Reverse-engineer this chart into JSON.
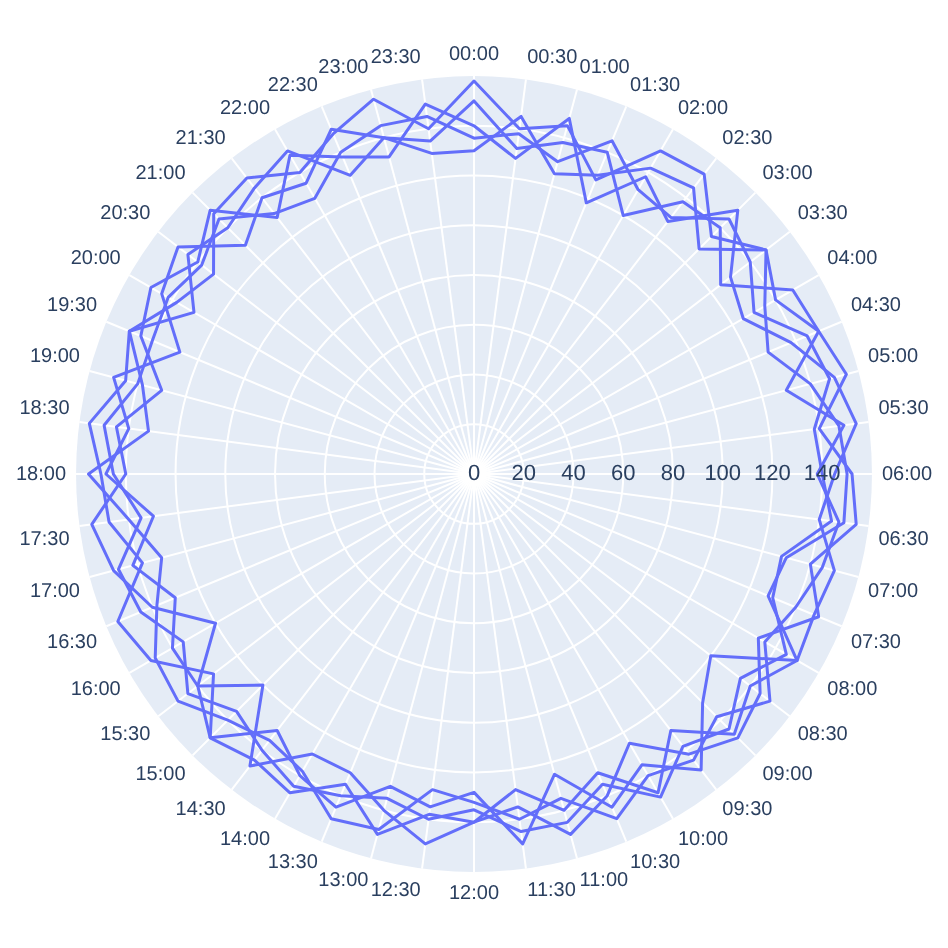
{
  "chart_data": {
    "type": "radar",
    "categories": [
      "00:00",
      "00:30",
      "01:00",
      "01:30",
      "02:00",
      "02:30",
      "03:00",
      "03:30",
      "04:00",
      "04:30",
      "05:00",
      "05:30",
      "06:00",
      "06:30",
      "07:00",
      "07:30",
      "08:00",
      "08:30",
      "09:00",
      "09:30",
      "10:00",
      "10:30",
      "11:00",
      "11:30",
      "12:00",
      "12:30",
      "13:00",
      "13:30",
      "14:00",
      "14:30",
      "15:00",
      "15:30",
      "16:00",
      "16:30",
      "17:00",
      "17:30",
      "18:00",
      "18:30",
      "19:00",
      "19:30",
      "20:00",
      "20:30",
      "21:00",
      "21:30",
      "22:00",
      "22:30",
      "23:00",
      "23:30"
    ],
    "series": [
      {
        "color": "#636efa",
        "values": [
          158,
          140,
          145,
          128,
          150,
          152,
          135,
          148,
          140,
          150,
          155,
          140,
          152,
          155,
          140,
          150,
          132,
          145,
          150,
          142,
          125,
          140,
          150,
          135,
          140,
          138,
          150,
          135,
          148,
          145,
          150,
          132,
          150,
          155,
          138,
          148,
          150,
          156,
          145,
          150,
          138,
          132,
          148,
          150,
          140,
          148,
          156,
          140
        ]
      },
      {
        "color": "#636efa",
        "values": [
          140,
          128,
          148,
          118,
          138,
          128,
          150,
          130,
          125,
          138,
          150,
          155,
          145,
          140,
          150,
          148,
          150,
          120,
          130,
          150,
          135,
          145,
          125,
          150,
          128,
          135,
          130,
          145,
          140,
          130,
          150,
          140,
          120,
          140,
          150,
          155,
          140,
          145,
          130,
          145,
          150,
          140,
          150,
          130,
          148,
          138,
          132,
          150
        ]
      },
      {
        "color": "#636efa",
        "values": [
          130,
          145,
          125,
          130,
          142,
          145,
          128,
          148,
          135,
          128,
          140,
          148,
          150,
          150,
          130,
          128,
          150,
          140,
          148,
          130,
          148,
          130,
          140,
          128,
          140,
          150,
          140,
          130,
          130,
          148,
          120,
          140,
          140,
          130,
          142,
          130,
          148,
          140,
          150,
          128,
          145,
          150,
          130,
          140,
          135,
          150,
          140,
          130
        ]
      },
      {
        "color": "#636efa",
        "values": [
          150,
          132,
          138,
          140,
          120,
          138,
          140,
          125,
          148,
          150,
          130,
          150,
          138,
          148,
          145,
          140,
          135,
          150,
          138,
          145,
          140,
          150,
          135,
          140,
          132,
          128,
          148,
          150,
          138,
          135,
          140,
          150,
          148,
          138,
          130,
          140,
          155,
          132,
          138,
          150,
          130,
          145,
          140,
          145,
          150,
          130,
          140,
          135
        ]
      },
      {
        "color": "#636efa",
        "values": [
          135,
          138,
          130,
          145,
          132,
          130,
          145,
          140,
          130,
          145,
          148,
          138,
          140,
          145,
          128,
          130,
          145,
          135,
          145,
          138,
          150,
          135,
          145,
          145,
          135,
          140,
          135,
          140,
          145,
          140,
          135,
          145,
          135,
          145,
          148,
          135,
          145,
          150,
          140,
          140,
          142,
          138,
          145,
          132,
          128,
          140,
          145,
          145
        ]
      }
    ],
    "ylim": [
      0,
      160
    ],
    "yticks": [
      0,
      20,
      40,
      60,
      80,
      100,
      120,
      140
    ],
    "grid": true
  }
}
